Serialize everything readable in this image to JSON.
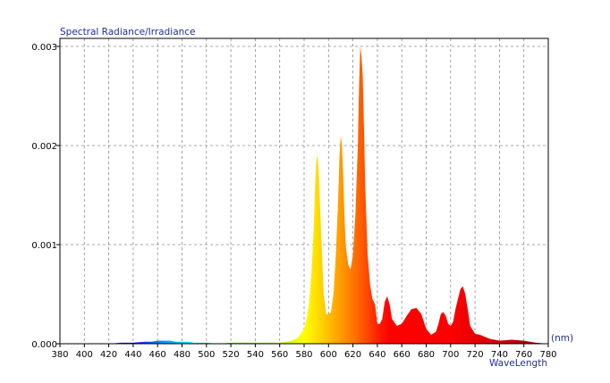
{
  "chart_data": {
    "type": "area",
    "title": "Spectral Radiance/Irradiance",
    "xlabel": "WaveLength",
    "xunit": "(nm)",
    "xlim": [
      380,
      780
    ],
    "ylim": [
      0,
      0.003
    ],
    "x_ticks": [
      "380",
      "400",
      "420",
      "440",
      "460",
      "480",
      "500",
      "520",
      "540",
      "560",
      "580",
      "600",
      "620",
      "640",
      "660",
      "680",
      "700",
      "720",
      "740",
      "760",
      "780"
    ],
    "y_ticks": [
      "0.000",
      "0.001",
      "0.002",
      "0.003"
    ],
    "grid": true,
    "x": [
      380,
      420,
      430,
      440,
      450,
      455,
      460,
      465,
      470,
      475,
      480,
      485,
      490,
      500,
      510,
      520,
      530,
      540,
      550,
      560,
      565,
      570,
      575,
      580,
      582,
      584,
      586,
      588,
      589,
      590,
      591,
      592,
      594,
      596,
      598,
      600,
      602,
      604,
      606,
      608,
      609,
      610,
      611,
      612,
      613,
      614,
      616,
      618,
      620,
      622,
      624,
      625,
      626,
      627,
      628,
      629,
      630,
      632,
      634,
      636,
      638,
      640,
      642,
      644,
      646,
      648,
      650,
      652,
      656,
      660,
      664,
      668,
      672,
      676,
      680,
      684,
      688,
      690,
      692,
      694,
      696,
      698,
      700,
      702,
      704,
      706,
      708,
      710,
      712,
      714,
      716,
      720,
      724,
      728,
      732,
      740,
      750,
      760,
      770,
      780
    ],
    "y": [
      0,
      0,
      1e-05,
      1e-05,
      2e-05,
      2e-05,
      3e-05,
      3e-05,
      3e-05,
      2e-05,
      2e-05,
      2e-05,
      1e-05,
      1e-05,
      0,
      1e-05,
      1e-05,
      1e-05,
      1e-05,
      1e-05,
      2e-05,
      3e-05,
      6e-05,
      0.00015,
      0.00025,
      0.0004,
      0.0007,
      0.0012,
      0.0016,
      0.00185,
      0.0019,
      0.0017,
      0.0011,
      0.0005,
      0.0003,
      0.0003,
      0.00032,
      0.0005,
      0.0009,
      0.0015,
      0.0019,
      0.0021,
      0.002,
      0.0017,
      0.0013,
      0.001,
      0.0008,
      0.00075,
      0.0009,
      0.0013,
      0.002,
      0.0026,
      0.003,
      0.0029,
      0.0027,
      0.0022,
      0.0016,
      0.0009,
      0.0006,
      0.00045,
      0.0004,
      0.0002,
      0.0002,
      0.00025,
      0.00042,
      0.00048,
      0.0004,
      0.00025,
      0.00018,
      0.0002,
      0.00028,
      0.00035,
      0.00036,
      0.0003,
      0.00015,
      9e-05,
      0.00012,
      0.0002,
      0.0003,
      0.00032,
      0.00028,
      0.0002,
      0.00018,
      0.00022,
      0.00035,
      0.00045,
      0.00055,
      0.00058,
      0.0005,
      0.00035,
      0.00018,
      0.0001,
      9e-05,
      7e-05,
      5e-05,
      3e-05,
      4e-05,
      3e-05,
      1e-05,
      0
    ]
  }
}
